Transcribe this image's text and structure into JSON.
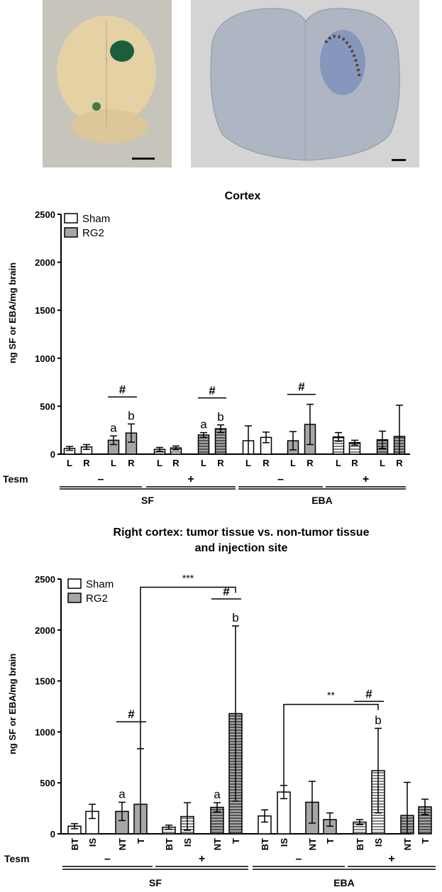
{
  "chart_data": [
    {
      "type": "bar",
      "title": "Cortex",
      "ylabel": "ng SF or EBA/mg brain",
      "ylim": [
        0,
        2500
      ],
      "yticks": [
        "0",
        "500",
        "1000",
        "1500",
        "2000",
        "2500"
      ],
      "legend": [
        {
          "name": "Sham",
          "fill": "white"
        },
        {
          "name": "RG2",
          "fill": "gray"
        }
      ],
      "legend_position": "top-left",
      "tesm_label": "Tesm",
      "tesm_values": [
        "–",
        "+",
        "–",
        "+"
      ],
      "groups": [
        "SF",
        "EBA"
      ],
      "bars": [
        {
          "label": "L",
          "value": 60,
          "err": 20,
          "fill": "white",
          "pattern": "none"
        },
        {
          "label": "R",
          "value": 75,
          "err": 25,
          "fill": "white",
          "pattern": "none"
        },
        {
          "label": "L",
          "value": 145,
          "err": 45,
          "fill": "gray",
          "pattern": "none",
          "annotation": "a"
        },
        {
          "label": "R",
          "value": 220,
          "err": 95,
          "fill": "gray",
          "pattern": "none",
          "annotation": "b"
        },
        {
          "label": "L",
          "value": 50,
          "err": 20,
          "fill": "white",
          "pattern": "hatch"
        },
        {
          "label": "R",
          "value": 65,
          "err": 20,
          "fill": "white",
          "pattern": "hatch"
        },
        {
          "label": "L",
          "value": 200,
          "err": 25,
          "fill": "gray",
          "pattern": "hatch",
          "annotation": "a"
        },
        {
          "label": "R",
          "value": 265,
          "err": 40,
          "fill": "gray",
          "pattern": "hatch",
          "annotation": "b"
        },
        {
          "label": "L",
          "value": 140,
          "err": 155,
          "fill": "white",
          "pattern": "none"
        },
        {
          "label": "R",
          "value": 175,
          "err": 55,
          "fill": "white",
          "pattern": "none"
        },
        {
          "label": "L",
          "value": 140,
          "err": 95,
          "fill": "gray",
          "pattern": "none"
        },
        {
          "label": "R",
          "value": 310,
          "err": 210,
          "fill": "gray",
          "pattern": "none"
        },
        {
          "label": "L",
          "value": 180,
          "err": 45,
          "fill": "white",
          "pattern": "hatch"
        },
        {
          "label": "R",
          "value": 120,
          "err": 25,
          "fill": "white",
          "pattern": "hatch"
        },
        {
          "label": "L",
          "value": 150,
          "err": 90,
          "fill": "gray",
          "pattern": "hatch"
        },
        {
          "label": "R",
          "value": 185,
          "err": 325,
          "fill": "gray",
          "pattern": "hatch"
        }
      ],
      "significance": [
        {
          "from": 2,
          "to": 3,
          "label": "#"
        },
        {
          "from": 6,
          "to": 7,
          "label": "#"
        },
        {
          "from": 10,
          "to": 11,
          "label": "#"
        }
      ]
    },
    {
      "type": "bar",
      "title": "Right cortex: tumor tissue vs. non-tumor tissue",
      "subtitle": "and injection site",
      "ylabel": "ng SF or EBA/mg brain",
      "ylim": [
        0,
        2500
      ],
      "yticks": [
        "0",
        "500",
        "1000",
        "1500",
        "2000",
        "2500"
      ],
      "legend": [
        {
          "name": "Sham",
          "fill": "white"
        },
        {
          "name": "RG2",
          "fill": "gray"
        }
      ],
      "legend_position": "top-left",
      "tesm_label": "Tesm",
      "tesm_values": [
        "–",
        "+",
        "–",
        "+"
      ],
      "groups": [
        "SF",
        "EBA"
      ],
      "bars": [
        {
          "label": "BT",
          "value": 75,
          "err": 25,
          "fill": "white",
          "pattern": "none"
        },
        {
          "label": "IS",
          "value": 220,
          "err": 70,
          "fill": "white",
          "pattern": "none"
        },
        {
          "label": "NT",
          "value": 220,
          "err": 90,
          "fill": "gray",
          "pattern": "none",
          "annotation": "a"
        },
        {
          "label": "T",
          "value": 290,
          "err": 545,
          "fill": "gray",
          "pattern": "none"
        },
        {
          "label": "BT",
          "value": 65,
          "err": 20,
          "fill": "white",
          "pattern": "hatch"
        },
        {
          "label": "IS",
          "value": 170,
          "err": 135,
          "fill": "white",
          "pattern": "hatch"
        },
        {
          "label": "NT",
          "value": 260,
          "err": 45,
          "fill": "gray",
          "pattern": "hatch",
          "annotation": "a"
        },
        {
          "label": "T",
          "value": 1180,
          "err": 860,
          "fill": "gray",
          "pattern": "hatch",
          "annotation": "b"
        },
        {
          "label": "BT",
          "value": 175,
          "err": 60,
          "fill": "white",
          "pattern": "none"
        },
        {
          "label": "IS",
          "value": 410,
          "err": 65,
          "fill": "white",
          "pattern": "none"
        },
        {
          "label": "NT",
          "value": 310,
          "err": 205,
          "fill": "gray",
          "pattern": "none"
        },
        {
          "label": "T",
          "value": 140,
          "err": 65,
          "fill": "gray",
          "pattern": "none"
        },
        {
          "label": "BT",
          "value": 115,
          "err": 25,
          "fill": "white",
          "pattern": "hatch"
        },
        {
          "label": "IS",
          "value": 620,
          "err": 415,
          "fill": "white",
          "pattern": "hatch",
          "annotation": "b"
        },
        {
          "label": "NT",
          "value": 180,
          "err": 325,
          "fill": "gray",
          "pattern": "hatch"
        },
        {
          "label": "T",
          "value": 265,
          "err": 75,
          "fill": "gray",
          "pattern": "hatch"
        }
      ],
      "significance": [
        {
          "from": 2,
          "to": 3,
          "label": "#"
        },
        {
          "from": 6,
          "to": 7,
          "label": "#"
        },
        {
          "from": 12,
          "to": 13,
          "label": "#"
        },
        {
          "from": 3,
          "to": 7,
          "label": "***",
          "type": "bracket"
        },
        {
          "from": 9,
          "to": 13,
          "label": "**",
          "type": "bracket"
        }
      ]
    }
  ]
}
